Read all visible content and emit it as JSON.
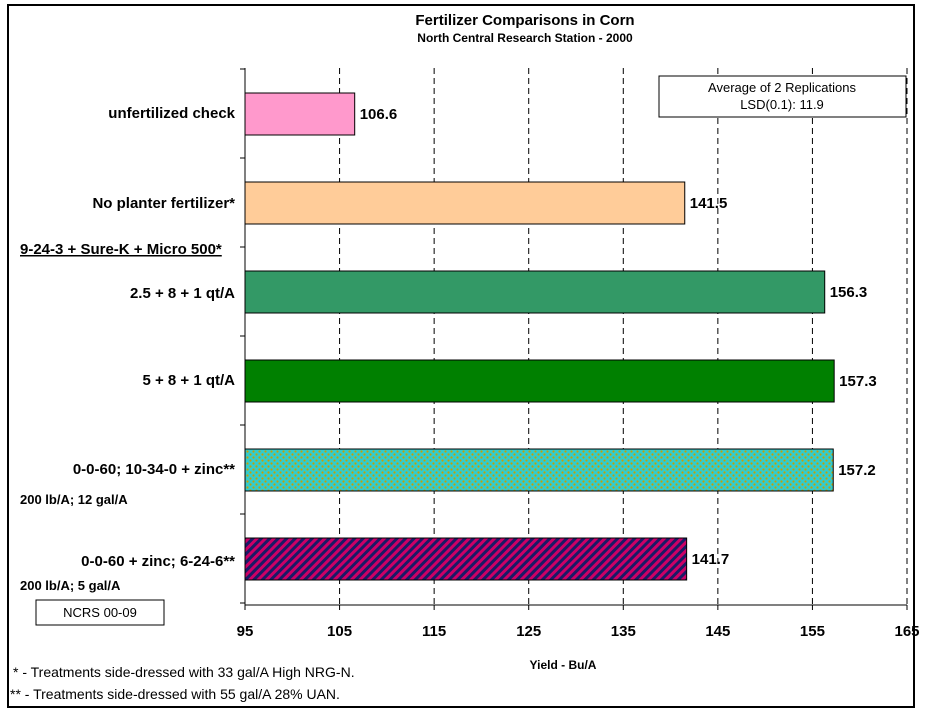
{
  "chart_data": {
    "type": "bar",
    "orientation": "horizontal",
    "title": "Fertilizer Comparisons in Corn",
    "subtitle": "North Central Research Station - 2000",
    "xlabel": "Yield - Bu/A",
    "xlim": [
      95,
      165
    ],
    "xticks": [
      "95",
      "105",
      "115",
      "125",
      "135",
      "145",
      "155",
      "165"
    ],
    "grid": "vertical dashed",
    "group_label": "9-24-3 + Sure-K + Micro 500*",
    "categories": [
      "unfertilized check",
      "No planter fertilizer*",
      "2.5 + 8 + 1 qt/A",
      "5 + 8 + 1 qt/A",
      "0-0-60; 10-34-0 + zinc**",
      "0-0-60 + zinc; 6-24-6**"
    ],
    "category_sublabels": [
      "",
      "",
      "",
      "",
      "200 lb/A;  12 gal/A",
      "200 lb/A;  5 gal/A"
    ],
    "values": [
      106.6,
      141.5,
      156.3,
      157.3,
      157.2,
      141.7
    ],
    "value_labels": [
      "106.6",
      "141.5",
      "156.3",
      "157.3",
      "157.2",
      "141.7"
    ],
    "bar_colors": [
      "#ff99cc",
      "#ffcc99",
      "#339966",
      "#008000",
      "#33cccc",
      "#cc0066"
    ],
    "bar_patterns": [
      "solid",
      "solid",
      "solid",
      "solid",
      "dots",
      "diagonal-stripes"
    ],
    "legend_box": [
      "Average of 2 Replications",
      "LSD(0.1): 11.9"
    ],
    "id_box": "NCRS 00-09",
    "footnotes": [
      "* - Treatments side-dressed with 33 gal/A High NRG-N.",
      "** - Treatments side-dressed with 55 gal/A 28% UAN."
    ]
  }
}
